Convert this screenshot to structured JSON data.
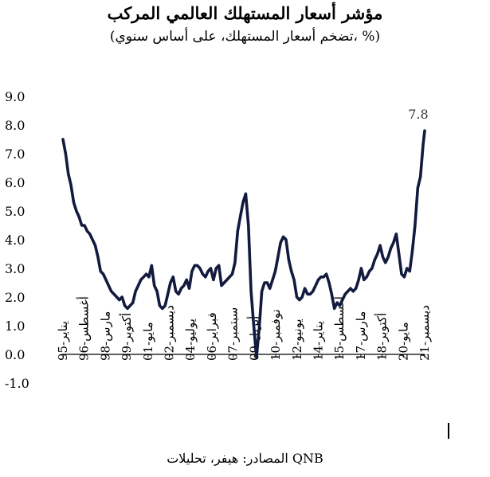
{
  "title": "مؤشر أسعار المستهلك العالمي المركب",
  "subtitle": "(تضخم أسعار المستهلك، على أساس سنوي، %)",
  "source": "المصادر: هيفر، تحليلات QNB",
  "colors": {
    "line": "#121a3e",
    "axis": "#000000"
  },
  "chart_data": {
    "type": "line",
    "title": "مؤشر أسعار المستهلك العالمي المركب",
    "subtitle": "(تضخم أسعار المستهلك، على أساس سنوي، %)",
    "ylim": [
      -1.0,
      9.0
    ],
    "yticks": [
      "-1.0",
      "0.0",
      "1.0",
      "2.0",
      "3.0",
      "4.0",
      "5.0",
      "6.0",
      "7.0",
      "8.0",
      "9.0"
    ],
    "grid": false,
    "xrange": [
      1995.0,
      2021.917
    ],
    "xticks": [
      {
        "label": "يناير-95",
        "x": 1995.0
      },
      {
        "label": "أغسطس-96",
        "x": 1996.583
      },
      {
        "label": "مارس-98",
        "x": 1998.167
      },
      {
        "label": "أكتوبر-99",
        "x": 1999.75
      },
      {
        "label": "مايو-01",
        "x": 2001.333
      },
      {
        "label": "ديسمبر-02",
        "x": 2002.917
      },
      {
        "label": "يوليو-04",
        "x": 2004.5
      },
      {
        "label": "فبراير-06",
        "x": 2006.083
      },
      {
        "label": "سبتمبر-07",
        "x": 2007.667
      },
      {
        "label": "أبريل-09",
        "x": 2009.25
      },
      {
        "label": "نوفمبر-10",
        "x": 2010.833
      },
      {
        "label": "يونيو-12",
        "x": 2012.417
      },
      {
        "label": "يناير-14",
        "x": 2014.0
      },
      {
        "label": "أغسطس-15",
        "x": 2015.583
      },
      {
        "label": "مارس-17",
        "x": 2017.167
      },
      {
        "label": "أكتوبر-18",
        "x": 2018.75
      },
      {
        "label": "مايو-20",
        "x": 2020.333
      },
      {
        "label": "ديسمبر-21",
        "x": 2021.917
      }
    ],
    "annotation": {
      "text": "7.8",
      "x": 2021.917,
      "y": 7.8
    },
    "series": [
      {
        "x": [
          1995.0,
          1995.2,
          1995.4,
          1995.6,
          1995.8,
          1996.0,
          1996.2,
          1996.4,
          1996.6,
          1996.8,
          1997.0,
          1997.2,
          1997.4,
          1997.6,
          1997.8,
          1998.0,
          1998.2,
          1998.4,
          1998.6,
          1998.8,
          1999.0,
          1999.2,
          1999.4,
          1999.6,
          1999.8,
          2000.0,
          2000.2,
          2000.4,
          2000.6,
          2000.8,
          2001.0,
          2001.2,
          2001.4,
          2001.6,
          2001.8,
          2002.0,
          2002.2,
          2002.4,
          2002.6,
          2002.8,
          2003.0,
          2003.2,
          2003.4,
          2003.6,
          2003.8,
          2004.0,
          2004.2,
          2004.4,
          2004.6,
          2004.8,
          2005.0,
          2005.2,
          2005.4,
          2005.6,
          2005.8,
          2006.0,
          2006.2,
          2006.4,
          2006.6,
          2006.8,
          2007.0,
          2007.2,
          2007.4,
          2007.6,
          2007.8,
          2008.0,
          2008.2,
          2008.4,
          2008.6,
          2008.8,
          2009.0,
          2009.2,
          2009.4,
          2009.6,
          2009.8,
          2010.0,
          2010.2,
          2010.4,
          2010.6,
          2010.8,
          2011.0,
          2011.2,
          2011.4,
          2011.6,
          2011.8,
          2012.0,
          2012.2,
          2012.4,
          2012.6,
          2012.8,
          2013.0,
          2013.2,
          2013.4,
          2013.6,
          2013.8,
          2014.0,
          2014.2,
          2014.4,
          2014.6,
          2014.8,
          2015.0,
          2015.2,
          2015.4,
          2015.6,
          2015.8,
          2016.0,
          2016.2,
          2016.4,
          2016.6,
          2016.8,
          2017.0,
          2017.2,
          2017.4,
          2017.6,
          2017.8,
          2018.0,
          2018.2,
          2018.4,
          2018.6,
          2018.8,
          2019.0,
          2019.2,
          2019.4,
          2019.6,
          2019.8,
          2020.0,
          2020.2,
          2020.4,
          2020.6,
          2020.8,
          2021.0,
          2021.2,
          2021.4,
          2021.6,
          2021.8,
          2021.917
        ],
        "values": [
          7.5,
          7.0,
          6.3,
          5.9,
          5.3,
          5.0,
          4.8,
          4.5,
          4.5,
          4.3,
          4.2,
          4.0,
          3.8,
          3.4,
          2.9,
          2.8,
          2.6,
          2.4,
          2.2,
          2.1,
          2.0,
          1.9,
          2.0,
          1.7,
          1.6,
          1.7,
          1.8,
          2.2,
          2.4,
          2.6,
          2.7,
          2.8,
          2.7,
          3.1,
          2.4,
          2.2,
          1.7,
          1.6,
          1.7,
          2.1,
          2.5,
          2.7,
          2.2,
          2.1,
          2.3,
          2.4,
          2.6,
          2.3,
          2.9,
          3.1,
          3.1,
          3.0,
          2.8,
          2.7,
          2.9,
          3.0,
          2.6,
          3.0,
          3.1,
          2.4,
          2.5,
          2.6,
          2.7,
          2.8,
          3.2,
          4.3,
          4.8,
          5.3,
          5.6,
          4.5,
          2.2,
          1.0,
          -0.1,
          0.9,
          2.2,
          2.5,
          2.5,
          2.3,
          2.6,
          2.9,
          3.4,
          3.9,
          4.1,
          4.0,
          3.3,
          2.9,
          2.6,
          2.0,
          1.9,
          2.0,
          2.3,
          2.1,
          2.1,
          2.2,
          2.4,
          2.6,
          2.7,
          2.7,
          2.8,
          2.5,
          2.1,
          1.6,
          1.8,
          1.7,
          1.9,
          2.1,
          2.2,
          2.3,
          2.2,
          2.3,
          2.6,
          3.0,
          2.6,
          2.7,
          2.9,
          3.0,
          3.3,
          3.5,
          3.8,
          3.4,
          3.2,
          3.4,
          3.7,
          3.9,
          4.2,
          3.5,
          2.8,
          2.7,
          3.0,
          2.9,
          3.6,
          4.5,
          5.8,
          6.2,
          7.3,
          7.8
        ]
      }
    ]
  }
}
